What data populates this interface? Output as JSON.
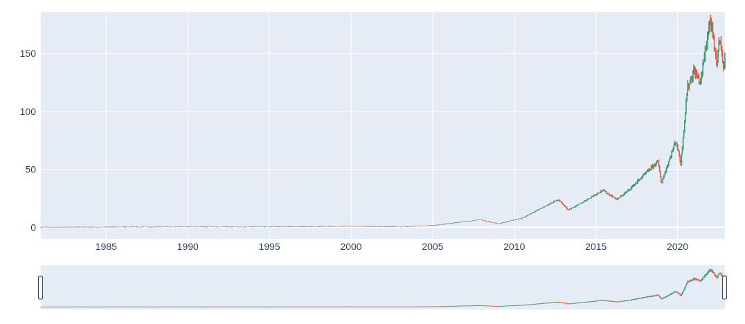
{
  "chart_data": {
    "type": "candlestick",
    "title": "",
    "xlabel": "",
    "ylabel": "",
    "x_range": [
      1981.0,
      2022.9
    ],
    "ylim": [
      -10,
      186
    ],
    "grid": true,
    "rangeslider": true,
    "x_ticks": [
      1985,
      1990,
      1995,
      2000,
      2005,
      2010,
      2015,
      2020
    ],
    "x_tick_labels": [
      "1985",
      "1990",
      "1995",
      "2000",
      "2005",
      "2010",
      "2015",
      "2020"
    ],
    "y_ticks": [
      0,
      50,
      100,
      150
    ],
    "y_tick_labels": [
      "0",
      "50",
      "100",
      "150"
    ],
    "colors": {
      "plot_background": "#e5ecf6",
      "grid": "#ffffff",
      "increasing": "#3d9970",
      "decreasing": "#ef553b",
      "tick_text": "#2a3f5f"
    },
    "approx_price_path": [
      {
        "x": 1981.0,
        "y": 0.1
      },
      {
        "x": 1990.0,
        "y": 0.3
      },
      {
        "x": 1995.0,
        "y": 0.3
      },
      {
        "x": 2000.0,
        "y": 0.8
      },
      {
        "x": 2003.0,
        "y": 0.3
      },
      {
        "x": 2005.0,
        "y": 1.5
      },
      {
        "x": 2007.9,
        "y": 6.5
      },
      {
        "x": 2009.0,
        "y": 3.0
      },
      {
        "x": 2010.5,
        "y": 8.0
      },
      {
        "x": 2012.7,
        "y": 24.0
      },
      {
        "x": 2013.3,
        "y": 15.0
      },
      {
        "x": 2014.0,
        "y": 20.0
      },
      {
        "x": 2015.4,
        "y": 32.0
      },
      {
        "x": 2016.3,
        "y": 24.0
      },
      {
        "x": 2017.0,
        "y": 32.0
      },
      {
        "x": 2018.8,
        "y": 57.0
      },
      {
        "x": 2019.0,
        "y": 38.0
      },
      {
        "x": 2019.9,
        "y": 75.0
      },
      {
        "x": 2020.2,
        "y": 55.0
      },
      {
        "x": 2020.6,
        "y": 120.0
      },
      {
        "x": 2021.0,
        "y": 135.0
      },
      {
        "x": 2021.4,
        "y": 125.0
      },
      {
        "x": 2022.0,
        "y": 180.0
      },
      {
        "x": 2022.4,
        "y": 140.0
      },
      {
        "x": 2022.6,
        "y": 168.0
      },
      {
        "x": 2022.8,
        "y": 135.0
      },
      {
        "x": 2022.9,
        "y": 150.0
      }
    ]
  }
}
